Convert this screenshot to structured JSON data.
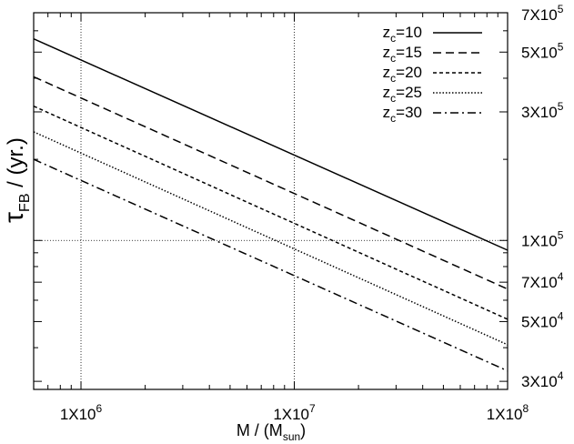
{
  "chart_data": {
    "type": "line",
    "xlabel": {
      "base": "M / (M",
      "sub": "sun",
      "tail": ")"
    },
    "ylabel": {
      "sym": "τ",
      "sub": "FB",
      "tail": " / (yr.)"
    },
    "xscale": "log",
    "yscale": "log",
    "xlim": [
      600000,
      100000000
    ],
    "ylim": [
      28000,
      700000
    ],
    "x_ticks": [
      {
        "value": 1000000,
        "mant": "1X10",
        "exp": "6"
      },
      {
        "value": 10000000,
        "mant": "1X10",
        "exp": "7"
      },
      {
        "value": 100000000,
        "mant": "1X10",
        "exp": "8"
      }
    ],
    "y_ticks": [
      {
        "value": 700000,
        "mant": "7X10",
        "exp": "5"
      },
      {
        "value": 500000,
        "mant": "5X10",
        "exp": "5"
      },
      {
        "value": 300000,
        "mant": "3X10",
        "exp": "5"
      },
      {
        "value": 100000,
        "mant": "1X10",
        "exp": "5"
      },
      {
        "value": 70000,
        "mant": "7X10",
        "exp": "4"
      },
      {
        "value": 50000,
        "mant": "5X10",
        "exp": "4"
      },
      {
        "value": 30000,
        "mant": "3X10",
        "exp": "4"
      }
    ],
    "grid": {
      "x": [
        1000000,
        10000000
      ],
      "y": [
        100000
      ]
    },
    "legend_position": "top-right",
    "series": [
      {
        "key": "zc10",
        "name": {
          "z": "z",
          "sub": "c",
          "rest": "=10"
        },
        "dash": "solid",
        "x": [
          600000,
          100000000
        ],
        "y": [
          560000,
          92000
        ]
      },
      {
        "key": "zc15",
        "name": {
          "z": "z",
          "sub": "c",
          "rest": "=15"
        },
        "dash": "dashed",
        "x": [
          600000,
          100000000
        ],
        "y": [
          405000,
          66000
        ]
      },
      {
        "key": "zc20",
        "name": {
          "z": "z",
          "sub": "c",
          "rest": "=20"
        },
        "dash": "short-dashed",
        "x": [
          600000,
          100000000
        ],
        "y": [
          315000,
          51000
        ]
      },
      {
        "key": "zc25",
        "name": {
          "z": "z",
          "sub": "c",
          "rest": "=25"
        },
        "dash": "dotted",
        "x": [
          600000,
          100000000
        ],
        "y": [
          253000,
          41000
        ]
      },
      {
        "key": "zc30",
        "name": {
          "z": "z",
          "sub": "c",
          "rest": "=30"
        },
        "dash": "dash-dot",
        "x": [
          600000,
          100000000
        ],
        "y": [
          200000,
          32800
        ]
      }
    ]
  }
}
